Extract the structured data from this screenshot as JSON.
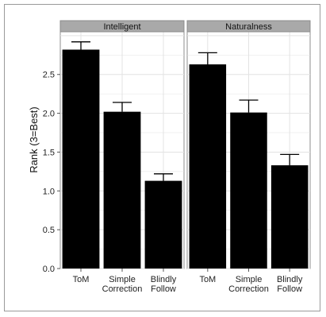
{
  "chart_data": {
    "type": "bar",
    "ylabel": "Rank (3=Best)",
    "ylim": [
      0,
      3.05
    ],
    "yticks": [
      "0.0",
      "0.5",
      "1.0",
      "1.5",
      "2.0",
      "2.5"
    ],
    "grid": true,
    "bar_color": "#000000",
    "panel_background": "#ffffff",
    "grid_color": "#e3e3e3",
    "strip_color": "#a9a9a9",
    "categories": [
      [
        "ToM"
      ],
      [
        "Simple",
        "Correction"
      ],
      [
        "Blindly",
        "Follow"
      ]
    ],
    "panels": [
      {
        "strip": "Intelligent",
        "values": [
          2.82,
          2.02,
          1.13
        ],
        "errors": [
          0.1,
          0.12,
          0.09
        ]
      },
      {
        "strip": "Naturalness",
        "values": [
          2.63,
          2.01,
          1.33
        ],
        "errors": [
          0.15,
          0.16,
          0.14
        ]
      }
    ]
  }
}
